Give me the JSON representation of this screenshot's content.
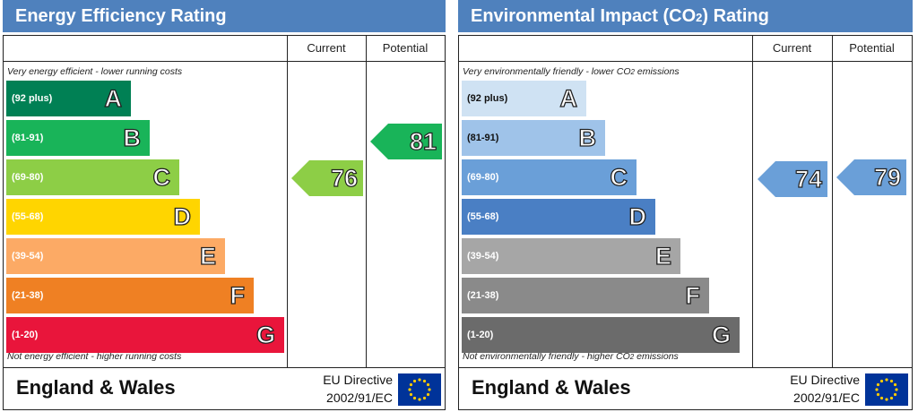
{
  "chart_data": [
    {
      "type": "bar",
      "title": "Energy Efficiency Rating",
      "columns": [
        "Current",
        "Potential"
      ],
      "top_caption": "Very energy efficient - lower running costs",
      "bottom_caption": "Not energy efficient - higher running costs",
      "bands": [
        {
          "letter": "A",
          "range": "(92 plus)",
          "color": "#008054"
        },
        {
          "letter": "B",
          "range": "(81-91)",
          "color": "#19b459"
        },
        {
          "letter": "C",
          "range": "(69-80)",
          "color": "#8dce46"
        },
        {
          "letter": "D",
          "range": "(55-68)",
          "color": "#ffd500"
        },
        {
          "letter": "E",
          "range": "(39-54)",
          "color": "#fcaa65"
        },
        {
          "letter": "F",
          "range": "(21-38)",
          "color": "#ef8023"
        },
        {
          "letter": "G",
          "range": "(1-20)",
          "color": "#e9153b"
        }
      ],
      "current": {
        "value": 76,
        "label": "76",
        "band": "C",
        "color": "#8dce46"
      },
      "potential": {
        "value": 81,
        "label": "81",
        "band": "B",
        "color": "#19b459"
      },
      "footer": {
        "country": "England & Wales",
        "directive_line1": "EU Directive",
        "directive_line2": "2002/91/EC"
      }
    },
    {
      "type": "bar",
      "title": "Environmental Impact (CO2) Rating",
      "columns": [
        "Current",
        "Potential"
      ],
      "top_caption": "Very environmentally friendly - lower CO2 emissions",
      "bottom_caption": "Not environmentally friendly - higher CO2 emissions",
      "bands": [
        {
          "letter": "A",
          "range": "(92 plus)",
          "color": "#cfe2f3"
        },
        {
          "letter": "B",
          "range": "(81-91)",
          "color": "#9fc3e9"
        },
        {
          "letter": "C",
          "range": "(69-80)",
          "color": "#6a9fd8"
        },
        {
          "letter": "D",
          "range": "(55-68)",
          "color": "#4a7fc4"
        },
        {
          "letter": "E",
          "range": "(39-54)",
          "color": "#a6a6a6"
        },
        {
          "letter": "F",
          "range": "(21-38)",
          "color": "#8a8a8a"
        },
        {
          "letter": "G",
          "range": "(1-20)",
          "color": "#6b6b6b"
        }
      ],
      "current": {
        "value": 74,
        "label": "74",
        "band": "C",
        "color": "#6a9fd8"
      },
      "potential": {
        "value": 79,
        "label": "79",
        "band": "C",
        "color": "#6a9fd8"
      },
      "footer": {
        "country": "England & Wales",
        "directive_line1": "EU Directive",
        "directive_line2": "2002/91/EC"
      }
    }
  ]
}
